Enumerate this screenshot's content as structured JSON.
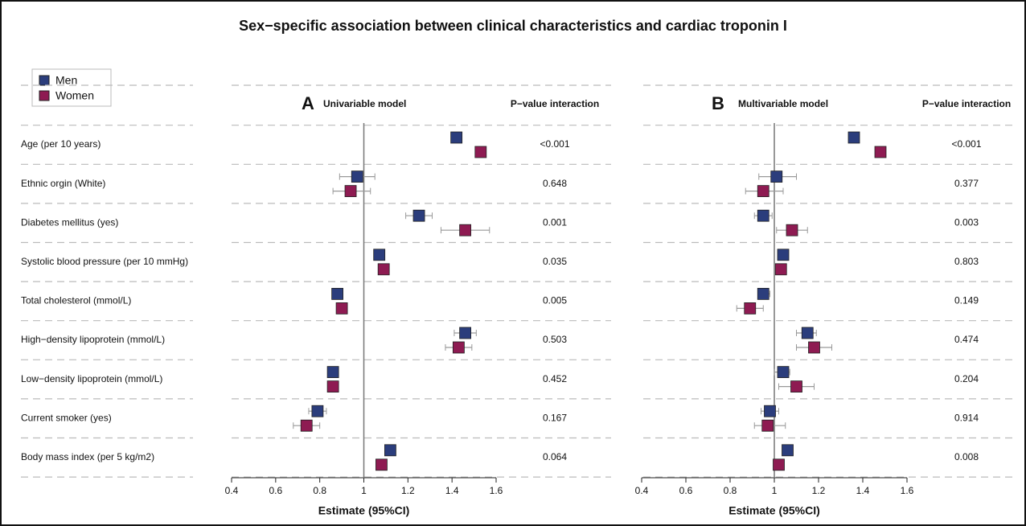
{
  "title": "Sex−specific association between clinical characteristics and cardiac troponin I",
  "chart_data": [
    {
      "type": "forest",
      "panel_label": "A",
      "subtitle": "Univariable model",
      "p_value_header": "P−value interaction",
      "xlabel": "Estimate (95%CI)",
      "xlim": [
        0.4,
        1.6
      ],
      "xticks": [
        0.4,
        0.6,
        0.8,
        1,
        1.2,
        1.4,
        1.6
      ],
      "reference_line": 1,
      "categories": [
        "Age (per 10 years)",
        "Ethnic orgin (White)",
        "Diabetes mellitus (yes)",
        "Systolic blood pressure (per 10 mmHg)",
        "Total cholesterol (mmol/L)",
        "High−density lipoprotein (mmol/L)",
        "Low−density lipoprotein (mmol/L)",
        "Current smoker (yes)",
        "Body mass index (per 5 kg/m2)"
      ],
      "p_values": [
        "<0.001",
        "0.648",
        "0.001",
        "0.035",
        "0.005",
        "0.503",
        "0.452",
        "0.167",
        "0.064"
      ],
      "series": [
        {
          "name": "Men",
          "color": "#2b3d7c",
          "values": [
            1.42,
            0.97,
            1.25,
            1.07,
            0.88,
            1.46,
            0.86,
            0.79,
            1.12
          ],
          "lower": [
            1.4,
            0.89,
            1.19,
            1.06,
            0.87,
            1.41,
            0.85,
            0.75,
            1.11
          ],
          "upper": [
            1.44,
            1.05,
            1.31,
            1.08,
            0.89,
            1.51,
            0.87,
            0.83,
            1.13
          ]
        },
        {
          "name": "Women",
          "color": "#8e1b52",
          "values": [
            1.53,
            0.94,
            1.46,
            1.09,
            0.9,
            1.43,
            0.86,
            0.74,
            1.08
          ],
          "lower": [
            1.51,
            0.86,
            1.35,
            1.08,
            0.89,
            1.37,
            0.85,
            0.68,
            1.07
          ],
          "upper": [
            1.55,
            1.03,
            1.57,
            1.1,
            0.91,
            1.49,
            0.87,
            0.8,
            1.09
          ]
        }
      ]
    },
    {
      "type": "forest",
      "panel_label": "B",
      "subtitle": "Multivariable model",
      "p_value_header": "P−value interaction",
      "xlabel": "Estimate (95%CI)",
      "xlim": [
        0.4,
        1.6
      ],
      "xticks": [
        0.4,
        0.6,
        0.8,
        1,
        1.2,
        1.4,
        1.6
      ],
      "reference_line": 1,
      "p_values": [
        "<0.001",
        "0.377",
        "0.003",
        "0.803",
        "0.149",
        "0.474",
        "0.204",
        "0.914",
        "0.008"
      ],
      "series": [
        {
          "color": "#2b3d7c",
          "values": [
            1.36,
            1.01,
            0.95,
            1.04,
            0.95,
            1.15,
            1.04,
            0.98,
            1.06
          ],
          "lower": [
            1.35,
            0.93,
            0.91,
            1.03,
            0.93,
            1.1,
            1.0,
            0.94,
            1.05
          ],
          "upper": [
            1.37,
            1.1,
            0.99,
            1.05,
            0.98,
            1.19,
            1.07,
            1.02,
            1.07
          ]
        },
        {
          "color": "#8e1b52",
          "values": [
            1.48,
            0.95,
            1.08,
            1.03,
            0.89,
            1.18,
            1.1,
            0.97,
            1.02
          ],
          "lower": [
            1.46,
            0.87,
            1.01,
            1.02,
            0.83,
            1.1,
            1.02,
            0.91,
            1.01
          ],
          "upper": [
            1.5,
            1.04,
            1.15,
            1.04,
            0.95,
            1.26,
            1.18,
            1.05,
            1.03
          ]
        }
      ]
    }
  ]
}
